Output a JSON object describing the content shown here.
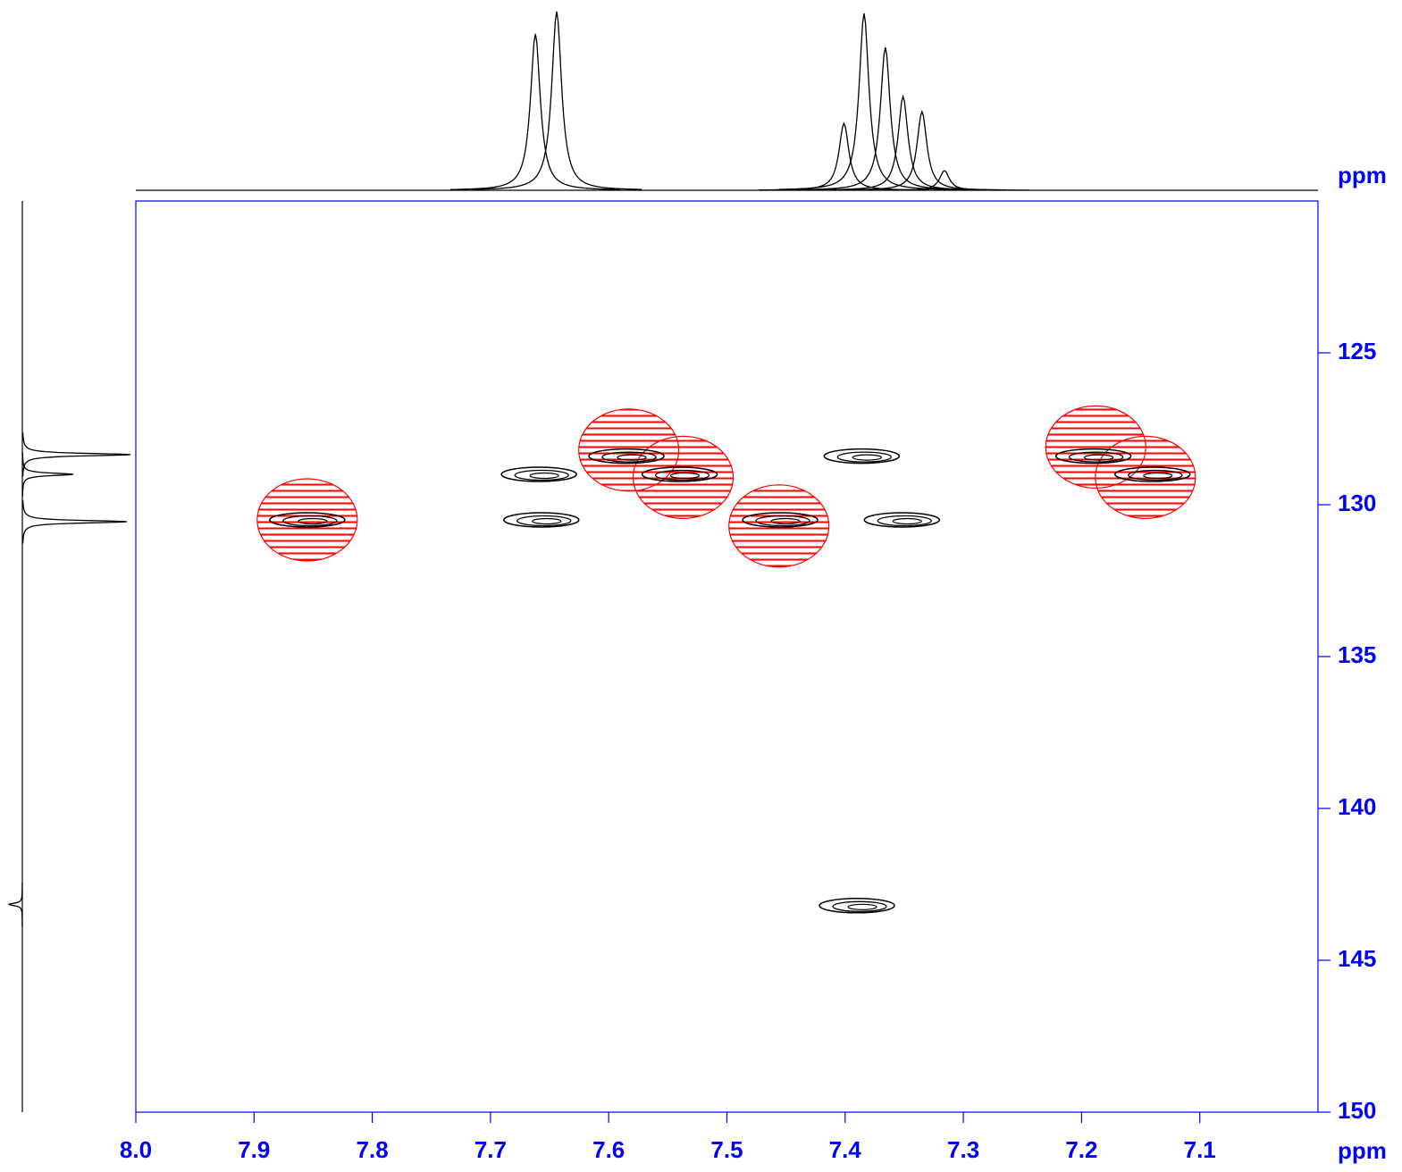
{
  "chart_data": {
    "type": "contour",
    "x_label": "ppm",
    "y_label": "ppm",
    "xlim": [
      8.0,
      7.0
    ],
    "ylim": [
      120,
      150
    ],
    "xticks": [
      {
        "value": 8,
        "label": "8.0"
      },
      7.9,
      7.8,
      7.7,
      7.6,
      7.5,
      7.4,
      7.3,
      7.2,
      7.1
    ],
    "yticks": [
      125,
      130,
      135,
      140,
      145,
      150
    ],
    "axis_color": "#0000ff",
    "peaks": {
      "color": "#000000",
      "x": [
        7.659,
        7.657,
        7.386,
        7.352,
        7.39,
        7.855,
        7.585,
        7.54,
        7.455,
        7.19,
        7.14
      ],
      "y": [
        129.0,
        130.5,
        128.4,
        130.5,
        143.2,
        130.5,
        128.4,
        129.0,
        130.5,
        128.4,
        129.0
      ]
    },
    "highlights": {
      "color": "#ff0000",
      "x": [
        7.855,
        7.583,
        7.537,
        7.456,
        7.188,
        7.146
      ],
      "y": [
        130.5,
        128.2,
        129.1,
        130.7,
        128.1,
        129.1
      ]
    },
    "top_projection": {
      "color": "#000000",
      "x": [
        7.662,
        7.644,
        7.401,
        7.384,
        7.366,
        7.351,
        7.335,
        7.316
      ],
      "intensity": [
        175,
        200,
        75,
        198,
        160,
        105,
        88,
        22
      ],
      "intensity_lim": [
        0,
        210
      ]
    },
    "left_projection": {
      "color": "#000000",
      "y": [
        128.35,
        129.0,
        130.56,
        143.16
      ],
      "intensity": [
        121,
        57,
        117,
        -15
      ],
      "intensity_lim": [
        0,
        125
      ]
    }
  }
}
